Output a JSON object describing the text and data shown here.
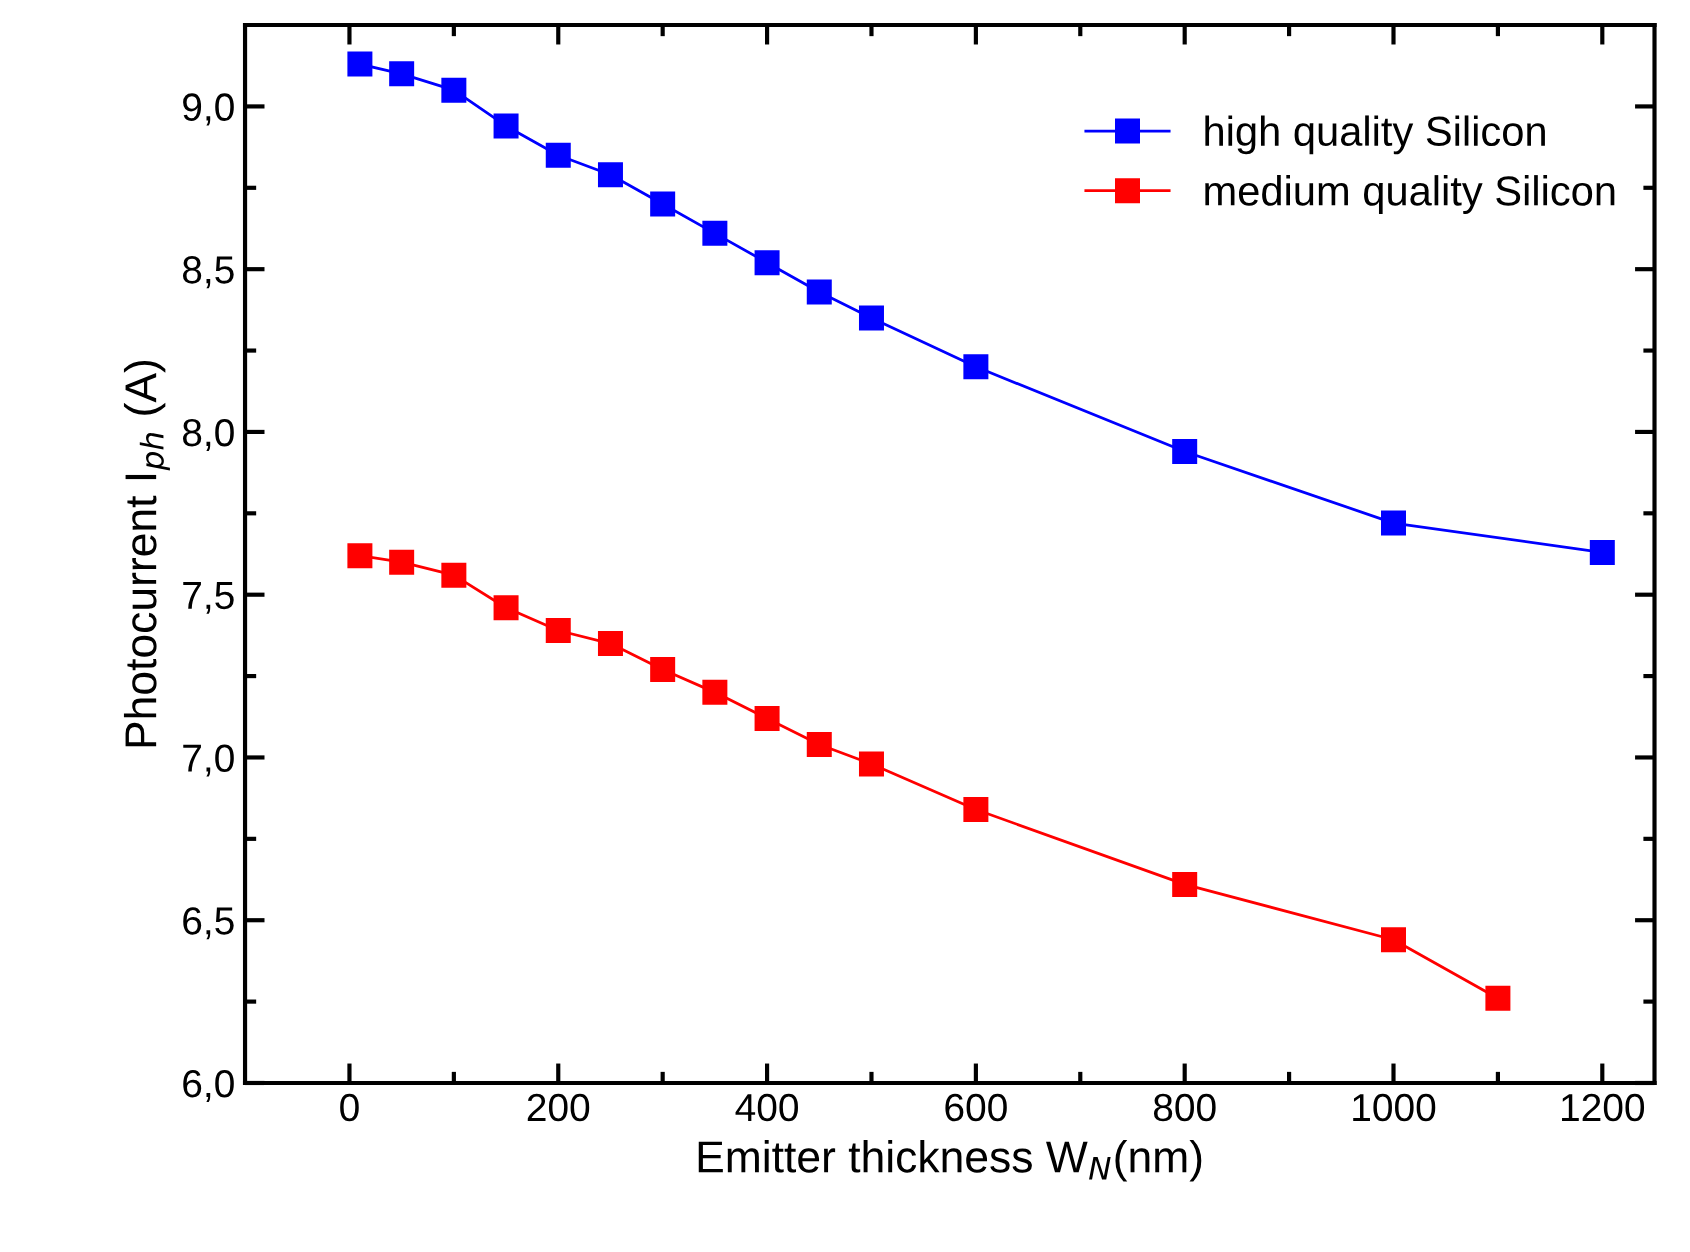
{
  "chart_data": {
    "type": "line",
    "xlabel": "Emitter thickness W$_{N}$(nm)",
    "ylabel": "Photocurrent I$_{ph}$ (A)",
    "series": [
      {
        "name": "high quality Silicon",
        "color": "#0000ff",
        "x": [
          10,
          50,
          100,
          150,
          200,
          250,
          300,
          350,
          400,
          450,
          500,
          600,
          800,
          1000,
          1200
        ],
        "values": [
          9.13,
          9.1,
          9.05,
          8.94,
          8.85,
          8.79,
          8.7,
          8.61,
          8.52,
          8.43,
          8.35,
          8.2,
          7.94,
          7.72,
          7.63
        ]
      },
      {
        "name": "medium quality Silicon",
        "color": "#ff0000",
        "x": [
          10,
          50,
          100,
          150,
          200,
          250,
          300,
          350,
          400,
          450,
          500,
          600,
          800,
          1000,
          1100
        ],
        "values": [
          7.62,
          7.6,
          7.56,
          7.46,
          7.39,
          7.35,
          7.27,
          7.2,
          7.12,
          7.04,
          6.98,
          6.84,
          6.61,
          6.44,
          6.26
        ]
      }
    ],
    "xlim": [
      -100,
      1250
    ],
    "xticks": [
      0,
      200,
      400,
      600,
      800,
      1000,
      1200
    ],
    "ylim": [
      6.0,
      9.25
    ],
    "yticks": [
      {
        "value": 6.0,
        "label": "6,0"
      },
      {
        "value": 6.5,
        "label": "6,5"
      },
      {
        "value": 7.0,
        "label": "7,0"
      },
      {
        "value": 7.5,
        "label": "7,5"
      },
      {
        "value": 8.0,
        "label": "8,0"
      },
      {
        "value": 8.5,
        "label": "8,5"
      },
      {
        "value": 9.0,
        "label": "9,0"
      }
    ],
    "grid": false,
    "legend": "top right",
    "marker": "square",
    "line_style": "solid"
  }
}
